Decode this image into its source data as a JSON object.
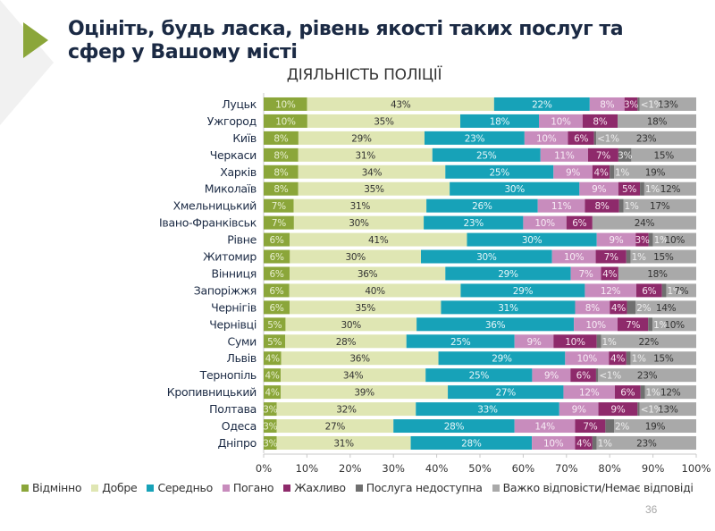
{
  "header": {
    "title": "Оцініть, будь ласка, рівень якості таких послуг та сфер у Вашому місті"
  },
  "page_number": "36",
  "colors": {
    "accent": "#8ba63a"
  },
  "chart_data": {
    "type": "bar",
    "orientation": "horizontal",
    "stacked": true,
    "normalized": true,
    "title": "ДІЯЛЬНІСТЬ ПОЛІЦІЇ",
    "xlabel": "",
    "ylabel": "",
    "xlim": [
      0,
      100
    ],
    "x_ticks": [
      "0%",
      "10%",
      "20%",
      "30%",
      "40%",
      "50%",
      "60%",
      "70%",
      "80%",
      "90%",
      "100%"
    ],
    "grid": false,
    "legend_position": "bottom",
    "categories": [
      "Луцьк",
      "Ужгород",
      "Київ",
      "Черкаси",
      "Харків",
      "Миколаїв",
      "Хмельницький",
      "Івано-Франківськ",
      "Рівне",
      "Житомир",
      "Вінниця",
      "Запоріжжя",
      "Чернігів",
      "Чернівці",
      "Суми",
      "Львів",
      "Тернопіль",
      "Кропивницький",
      "Полтава",
      "Одеса",
      "Дніпро"
    ],
    "series": [
      {
        "name": "Відмінно",
        "color": "#8ba63a",
        "label_color": "#e8efd0",
        "values": [
          10,
          10,
          8,
          8,
          8,
          8,
          7,
          7,
          6,
          6,
          6,
          6,
          6,
          5,
          5,
          4,
          4,
          4,
          3,
          3,
          3
        ],
        "labels": [
          "10%",
          "10%",
          "8%",
          "8%",
          "8%",
          "8%",
          "7%",
          "7%",
          "6%",
          "6%",
          "6%",
          "6%",
          "6%",
          "5%",
          "5%",
          "4%",
          "4%",
          "4%",
          "3%",
          "3%",
          "3%"
        ]
      },
      {
        "name": "Добре",
        "color": "#dfe6b3",
        "label_color": "#333333",
        "values": [
          43,
          35,
          29,
          31,
          34,
          35,
          31,
          30,
          41,
          30,
          36,
          40,
          35,
          30,
          28,
          36,
          34,
          39,
          32,
          27,
          31
        ],
        "labels": [
          "43%",
          "35%",
          "29%",
          "31%",
          "34%",
          "35%",
          "31%",
          "30%",
          "41%",
          "30%",
          "36%",
          "40%",
          "35%",
          "30%",
          "28%",
          "36%",
          "34%",
          "39%",
          "32%",
          "27%",
          "31%"
        ]
      },
      {
        "name": "Середньо",
        "color": "#17a2b8",
        "label_color": "#e6f6f9",
        "values": [
          22,
          18,
          23,
          25,
          25,
          30,
          26,
          23,
          30,
          30,
          29,
          29,
          31,
          36,
          25,
          29,
          25,
          27,
          33,
          28,
          28
        ],
        "labels": [
          "22%",
          "18%",
          "23%",
          "25%",
          "25%",
          "30%",
          "26%",
          "23%",
          "30%",
          "30%",
          "29%",
          "29%",
          "31%",
          "36%",
          "25%",
          "29%",
          "25%",
          "27%",
          "33%",
          "28%",
          "28%"
        ]
      },
      {
        "name": "Погано",
        "color": "#c88cbd",
        "label_color": "#f7ecf5",
        "values": [
          8,
          10,
          10,
          11,
          9,
          9,
          11,
          10,
          9,
          10,
          7,
          12,
          8,
          10,
          9,
          10,
          9,
          12,
          9,
          14,
          10
        ],
        "labels": [
          "8%",
          "10%",
          "10%",
          "11%",
          "9%",
          "9%",
          "11%",
          "10%",
          "9%",
          "10%",
          "7%",
          "12%",
          "8%",
          "10%",
          "9%",
          "10%",
          "9%",
          "12%",
          "9%",
          "14%",
          "10%"
        ]
      },
      {
        "name": "Жахливо",
        "color": "#8e2a6b",
        "label_color": "#f5e3ee",
        "values": [
          3,
          8,
          6,
          7,
          4,
          5,
          8,
          6,
          3,
          7,
          4,
          6,
          4,
          7,
          10,
          4,
          6,
          6,
          9,
          7,
          4
        ],
        "labels": [
          "3%",
          "8%",
          "6%",
          "7%",
          "4%",
          "5%",
          "8%",
          "6%",
          "3%",
          "7%",
          "4%",
          "6%",
          "4%",
          "7%",
          "10%",
          "4%",
          "6%",
          "6%",
          "9%",
          "7%",
          "4%"
        ]
      },
      {
        "name": "Послуга недоступна",
        "color": "#6f6f6f",
        "label_color": "#eeeeee",
        "values": [
          0.5,
          0,
          0.5,
          3,
          1,
          1,
          1,
          0,
          1,
          1,
          0,
          1,
          2,
          1,
          1,
          1,
          0.5,
          1,
          0.5,
          2,
          1
        ],
        "labels": [
          "<1%",
          "",
          "<1%",
          "3%",
          "1%",
          "1%",
          "1%",
          "",
          "1%",
          "1%",
          "",
          "1%",
          "2%",
          "1%",
          "1%",
          "1%",
          "<1%",
          "1%",
          "<1%",
          "2%",
          "1%"
        ]
      },
      {
        "name": "Важко відповісти/Немає відповіді",
        "color": "#a9a9a9",
        "label_color": "#333333",
        "values": [
          13,
          18,
          23,
          15,
          19,
          12,
          17,
          24,
          10,
          15,
          18,
          7,
          14,
          10,
          22,
          15,
          23,
          12,
          13,
          19,
          23
        ],
        "labels": [
          "13%",
          "18%",
          "23%",
          "15%",
          "19%",
          "12%",
          "17%",
          "24%",
          "10%",
          "15%",
          "18%",
          "7%",
          "14%",
          "10%",
          "22%",
          "15%",
          "23%",
          "12%",
          "13%",
          "19%",
          "23%"
        ]
      }
    ]
  }
}
